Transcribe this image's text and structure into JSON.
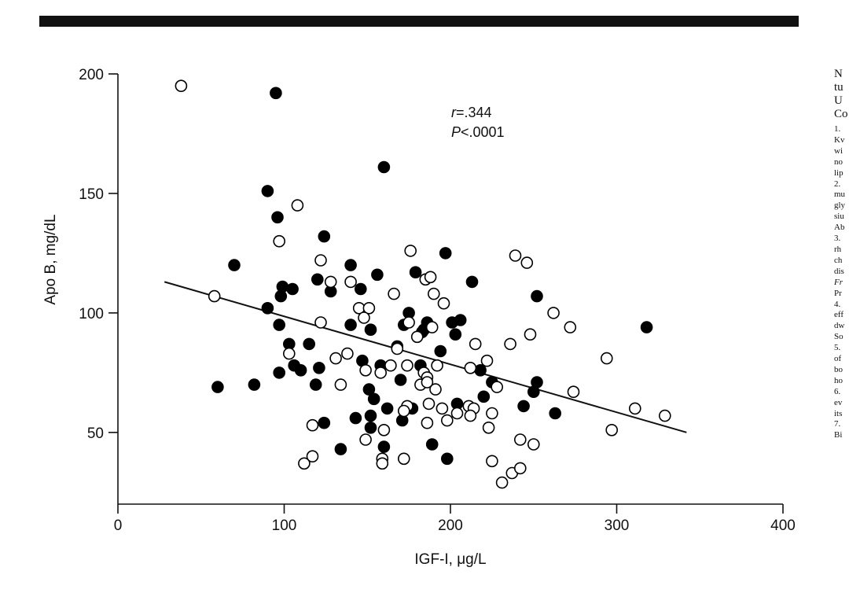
{
  "chart_data": {
    "type": "scatter",
    "title": "",
    "xlabel": "IGF-I, μg/L",
    "ylabel": "Apo B, mg/dL",
    "xlim": [
      0,
      400
    ],
    "ylim": [
      20,
      200
    ],
    "xticks": [
      0,
      100,
      200,
      300,
      400
    ],
    "yticks": [
      50,
      100,
      150,
      200
    ],
    "grid": false,
    "annotations": [
      "r=.344",
      "P<.0001"
    ],
    "trendline": {
      "x": [
        28,
        342
      ],
      "y": [
        113,
        50
      ]
    },
    "series": [
      {
        "marker": "filled-circle",
        "color": "#000000",
        "points": [
          [
            95,
            192
          ],
          [
            160,
            161
          ],
          [
            90,
            151
          ],
          [
            96,
            140
          ],
          [
            124,
            132
          ],
          [
            70,
            120
          ],
          [
            140,
            120
          ],
          [
            197,
            125
          ],
          [
            156,
            116
          ],
          [
            179,
            117
          ],
          [
            99,
            111
          ],
          [
            105,
            110
          ],
          [
            98,
            107
          ],
          [
            90,
            102
          ],
          [
            120,
            114
          ],
          [
            128,
            109
          ],
          [
            146,
            110
          ],
          [
            213,
            113
          ],
          [
            252,
            107
          ],
          [
            318,
            94
          ],
          [
            97,
            95
          ],
          [
            140,
            95
          ],
          [
            152,
            93
          ],
          [
            175,
            100
          ],
          [
            172,
            95
          ],
          [
            186,
            96
          ],
          [
            184,
            93
          ],
          [
            201,
            96
          ],
          [
            206,
            97
          ],
          [
            203,
            91
          ],
          [
            103,
            87
          ],
          [
            115,
            87
          ],
          [
            168,
            86
          ],
          [
            194,
            84
          ],
          [
            121,
            77
          ],
          [
            106,
            78
          ],
          [
            110,
            76
          ],
          [
            97,
            75
          ],
          [
            60,
            69
          ],
          [
            82,
            70
          ],
          [
            119,
            70
          ],
          [
            151,
            68
          ],
          [
            170,
            72
          ],
          [
            147,
            80
          ],
          [
            158,
            78
          ],
          [
            182,
            78
          ],
          [
            218,
            76
          ],
          [
            225,
            71
          ],
          [
            252,
            71
          ],
          [
            220,
            65
          ],
          [
            250,
            67
          ],
          [
            183,
            92
          ],
          [
            204,
            62
          ],
          [
            177,
            60
          ],
          [
            154,
            64
          ],
          [
            152,
            57
          ],
          [
            143,
            56
          ],
          [
            162,
            60
          ],
          [
            171,
            55
          ],
          [
            244,
            61
          ],
          [
            263,
            58
          ],
          [
            124,
            54
          ],
          [
            152,
            52
          ],
          [
            160,
            44
          ],
          [
            189,
            45
          ],
          [
            134,
            43
          ],
          [
            198,
            39
          ]
        ]
      },
      {
        "marker": "open-circle",
        "color": "#000000",
        "points": [
          [
            38,
            195
          ],
          [
            108,
            145
          ],
          [
            97,
            130
          ],
          [
            122,
            122
          ],
          [
            176,
            126
          ],
          [
            239,
            124
          ],
          [
            246,
            121
          ],
          [
            185,
            114
          ],
          [
            188,
            115
          ],
          [
            128,
            113
          ],
          [
            140,
            113
          ],
          [
            166,
            108
          ],
          [
            196,
            104
          ],
          [
            190,
            108
          ],
          [
            58,
            107
          ],
          [
            145,
            102
          ],
          [
            151,
            102
          ],
          [
            148,
            98
          ],
          [
            175,
            96
          ],
          [
            189,
            94
          ],
          [
            180,
            90
          ],
          [
            122,
            96
          ],
          [
            262,
            100
          ],
          [
            272,
            94
          ],
          [
            248,
            91
          ],
          [
            168,
            85
          ],
          [
            138,
            83
          ],
          [
            215,
            87
          ],
          [
            236,
            87
          ],
          [
            294,
            81
          ],
          [
            131,
            81
          ],
          [
            103,
            83
          ],
          [
            134,
            70
          ],
          [
            149,
            76
          ],
          [
            158,
            75
          ],
          [
            164,
            78
          ],
          [
            174,
            78
          ],
          [
            184,
            75
          ],
          [
            186,
            73
          ],
          [
            192,
            78
          ],
          [
            212,
            77
          ],
          [
            222,
            80
          ],
          [
            228,
            69
          ],
          [
            182,
            70
          ],
          [
            186,
            71
          ],
          [
            191,
            68
          ],
          [
            174,
            61
          ],
          [
            187,
            62
          ],
          [
            195,
            60
          ],
          [
            198,
            55
          ],
          [
            211,
            61
          ],
          [
            214,
            60
          ],
          [
            204,
            58
          ],
          [
            212,
            57
          ],
          [
            225,
            58
          ],
          [
            223,
            52
          ],
          [
            186,
            54
          ],
          [
            160,
            51
          ],
          [
            149,
            47
          ],
          [
            242,
            47
          ],
          [
            250,
            45
          ],
          [
            117,
            53
          ],
          [
            172,
            59
          ],
          [
            274,
            67
          ],
          [
            311,
            60
          ],
          [
            329,
            57
          ],
          [
            297,
            51
          ],
          [
            112,
            37
          ],
          [
            159,
            39
          ],
          [
            159,
            37
          ],
          [
            172,
            39
          ],
          [
            225,
            38
          ],
          [
            231,
            29
          ],
          [
            237,
            33
          ],
          [
            242,
            35
          ],
          [
            117,
            40
          ]
        ]
      }
    ]
  },
  "page": {
    "right_col_big": [
      "N",
      "tu",
      "U",
      "Co"
    ],
    "right_col_small": [
      "1.",
      "Kv",
      "wi",
      "no",
      "lip",
      "2.",
      "mu",
      "gly",
      "siu",
      "Ab",
      "3.",
      "rh",
      "ch",
      "dis",
      "Fr",
      "Pr",
      "4.",
      "eff",
      "dw",
      "So",
      "5.",
      "of",
      "bo",
      "ho",
      "6.",
      "ev",
      "its",
      "7.",
      "Bi"
    ]
  }
}
